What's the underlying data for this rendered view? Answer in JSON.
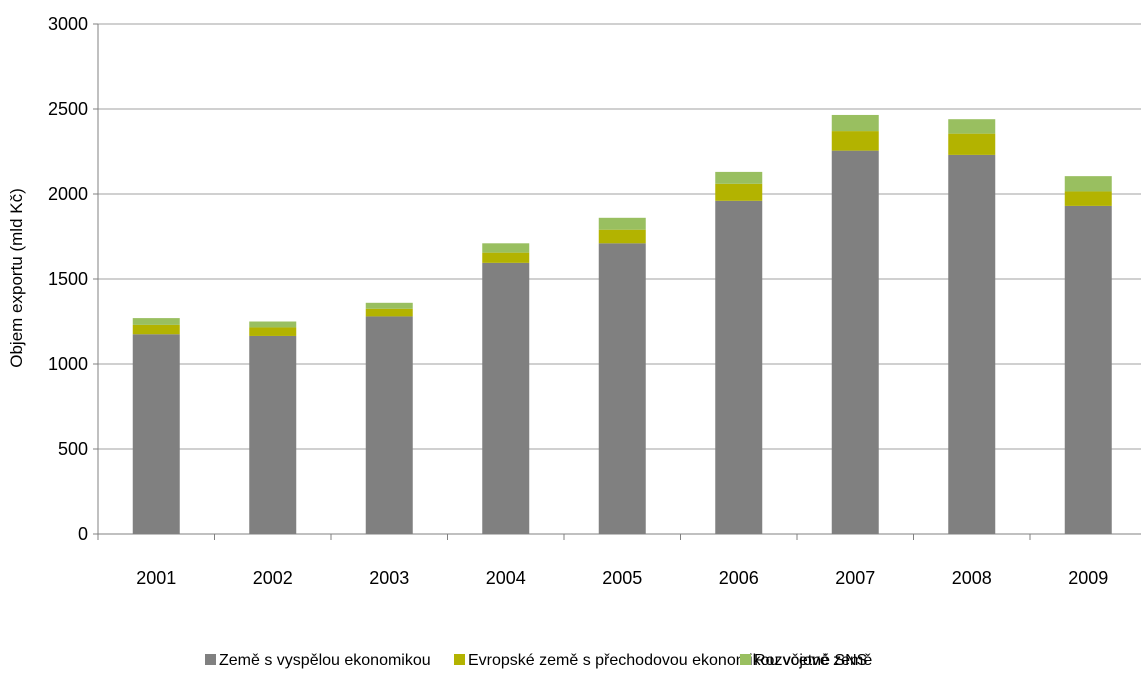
{
  "chart_data": {
    "type": "bar",
    "stacked": true,
    "title": "",
    "xlabel": "",
    "ylabel": "Objem exportu (mld Kč)",
    "categories": [
      "2001",
      "2002",
      "2003",
      "2004",
      "2005",
      "2006",
      "2007",
      "2008",
      "2009"
    ],
    "ylim": [
      0,
      3000
    ],
    "yticks": [
      0,
      500,
      1000,
      1500,
      2000,
      2500,
      3000
    ],
    "grid": true,
    "legend_position": "bottom",
    "series": [
      {
        "name": "Země s vyspělou ekonomikou",
        "color": "#808080",
        "values": [
          1175,
          1165,
          1280,
          1595,
          1710,
          1960,
          2255,
          2230,
          1930
        ]
      },
      {
        "name": "Evropské země s přechodovou ekonomikou včetně SNS",
        "color": "#b3b300",
        "values": [
          55,
          50,
          45,
          60,
          80,
          100,
          115,
          125,
          85
        ]
      },
      {
        "name": "Rozvojové země",
        "color": "#99bf60",
        "values": [
          40,
          35,
          35,
          55,
          70,
          70,
          95,
          85,
          90
        ]
      }
    ]
  }
}
